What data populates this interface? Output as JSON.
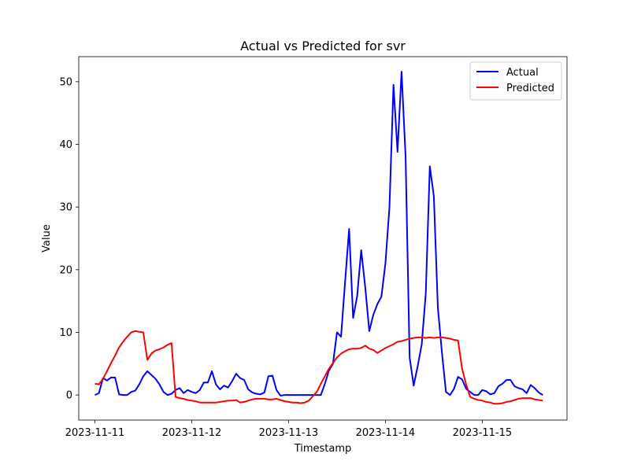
{
  "chart_data": {
    "type": "line",
    "title": "Actual vs Predicted for svr",
    "xlabel": "Timestamp",
    "ylabel": "Value",
    "x_tick_labels": [
      "2023-11-11",
      "2023-11-12",
      "2023-11-13",
      "2023-11-14",
      "2023-11-15"
    ],
    "y_ticks": [
      0,
      10,
      20,
      30,
      40,
      50
    ],
    "xlim": [
      "2023-11-10 20:00",
      "2023-11-15 21:00"
    ],
    "ylim": [
      -4,
      54
    ],
    "grid": false,
    "legend_position": "top-right",
    "x": [
      "2023-11-11 00:00",
      "2023-11-11 01:00",
      "2023-11-11 02:00",
      "2023-11-11 03:00",
      "2023-11-11 04:00",
      "2023-11-11 05:00",
      "2023-11-11 06:00",
      "2023-11-11 07:00",
      "2023-11-11 08:00",
      "2023-11-11 09:00",
      "2023-11-11 10:00",
      "2023-11-11 11:00",
      "2023-11-11 12:00",
      "2023-11-11 13:00",
      "2023-11-11 14:00",
      "2023-11-11 15:00",
      "2023-11-11 16:00",
      "2023-11-11 17:00",
      "2023-11-11 18:00",
      "2023-11-11 19:00",
      "2023-11-11 20:00",
      "2023-11-11 21:00",
      "2023-11-11 22:00",
      "2023-11-11 23:00",
      "2023-11-12 00:00",
      "2023-11-12 01:00",
      "2023-11-12 02:00",
      "2023-11-12 03:00",
      "2023-11-12 04:00",
      "2023-11-12 05:00",
      "2023-11-12 06:00",
      "2023-11-12 07:00",
      "2023-11-12 08:00",
      "2023-11-12 09:00",
      "2023-11-12 10:00",
      "2023-11-12 11:00",
      "2023-11-12 12:00",
      "2023-11-12 13:00",
      "2023-11-12 14:00",
      "2023-11-12 15:00",
      "2023-11-12 16:00",
      "2023-11-12 17:00",
      "2023-11-12 18:00",
      "2023-11-12 19:00",
      "2023-11-12 20:00",
      "2023-11-12 21:00",
      "2023-11-12 22:00",
      "2023-11-12 23:00",
      "2023-11-13 00:00",
      "2023-11-13 01:00",
      "2023-11-13 02:00",
      "2023-11-13 03:00",
      "2023-11-13 04:00",
      "2023-11-13 05:00",
      "2023-11-13 06:00",
      "2023-11-13 07:00",
      "2023-11-13 08:00",
      "2023-11-13 09:00",
      "2023-11-13 10:00",
      "2023-11-13 11:00",
      "2023-11-13 12:00",
      "2023-11-13 13:00",
      "2023-11-13 14:00",
      "2023-11-13 15:00",
      "2023-11-13 16:00",
      "2023-11-13 17:00",
      "2023-11-13 18:00",
      "2023-11-13 19:00",
      "2023-11-13 20:00",
      "2023-11-13 21:00",
      "2023-11-13 22:00",
      "2023-11-13 23:00",
      "2023-11-14 00:00",
      "2023-11-14 01:00",
      "2023-11-14 02:00",
      "2023-11-14 03:00",
      "2023-11-14 04:00",
      "2023-11-14 05:00",
      "2023-11-14 06:00",
      "2023-11-14 07:00",
      "2023-11-14 08:00",
      "2023-11-14 09:00",
      "2023-11-14 10:00",
      "2023-11-14 11:00",
      "2023-11-14 12:00",
      "2023-11-14 13:00",
      "2023-11-14 14:00",
      "2023-11-14 15:00",
      "2023-11-14 16:00",
      "2023-11-14 17:00",
      "2023-11-14 18:00",
      "2023-11-14 19:00",
      "2023-11-14 20:00",
      "2023-11-14 21:00",
      "2023-11-14 22:00",
      "2023-11-14 23:00",
      "2023-11-15 00:00",
      "2023-11-15 01:00",
      "2023-11-15 02:00",
      "2023-11-15 03:00",
      "2023-11-15 04:00",
      "2023-11-15 05:00",
      "2023-11-15 06:00",
      "2023-11-15 07:00",
      "2023-11-15 08:00",
      "2023-11-15 09:00",
      "2023-11-15 10:00",
      "2023-11-15 11:00",
      "2023-11-15 12:00",
      "2023-11-15 13:00",
      "2023-11-15 14:00",
      "2023-11-15 15:00"
    ],
    "series": [
      {
        "name": "Actual",
        "color": "#0000ff",
        "values": [
          0.0,
          0.3,
          2.7,
          2.3,
          2.8,
          2.8,
          0.1,
          0.0,
          0.0,
          0.5,
          0.7,
          1.7,
          3.0,
          3.8,
          3.2,
          2.6,
          1.7,
          0.5,
          0.0,
          0.2,
          0.8,
          1.1,
          0.3,
          0.8,
          0.5,
          0.3,
          0.8,
          2.0,
          2.0,
          3.8,
          1.7,
          0.9,
          1.5,
          1.2,
          2.2,
          3.4,
          2.7,
          2.4,
          0.9,
          0.4,
          0.2,
          0.1,
          0.4,
          3.0,
          3.1,
          0.8,
          -0.1,
          0.0,
          0.0,
          0.0,
          0.0,
          0.0,
          0.0,
          0.0,
          0.0,
          0.0,
          0.0,
          1.8,
          3.9,
          5.0,
          10.0,
          9.3,
          18.0,
          26.5,
          12.3,
          15.8,
          23.1,
          17.2,
          10.2,
          12.8,
          14.5,
          15.7,
          21.0,
          30.0,
          49.5,
          38.8,
          51.6,
          38.0,
          6.0,
          1.5,
          4.6,
          8.1,
          16.2,
          36.5,
          31.7,
          13.9,
          6.8,
          0.5,
          0.0,
          1.0,
          2.9,
          2.5,
          1.0,
          0.5,
          0.0,
          0.0,
          0.8,
          0.6,
          0.1,
          0.3,
          1.4,
          1.8,
          2.4,
          2.4,
          1.4,
          1.1,
          0.9,
          0.3,
          1.6,
          1.1,
          0.4,
          0.0
        ]
      },
      {
        "name": "Predicted",
        "color": "#ff0000",
        "values": [
          1.8,
          1.7,
          2.6,
          3.8,
          5.1,
          6.3,
          7.6,
          8.5,
          9.3,
          10.0,
          10.2,
          10.1,
          10.0,
          5.6,
          6.6,
          7.1,
          7.3,
          7.6,
          8.0,
          8.3,
          -0.3,
          -0.5,
          -0.6,
          -0.8,
          -0.9,
          -1.0,
          -1.2,
          -1.2,
          -1.2,
          -1.2,
          -1.2,
          -1.1,
          -1.0,
          -0.9,
          -0.9,
          -0.8,
          -1.2,
          -1.1,
          -0.9,
          -0.7,
          -0.6,
          -0.6,
          -0.6,
          -0.7,
          -0.7,
          -0.6,
          -0.8,
          -1.0,
          -1.1,
          -1.2,
          -1.2,
          -1.3,
          -1.2,
          -0.9,
          -0.2,
          0.5,
          1.8,
          3.0,
          4.2,
          5.1,
          6.0,
          6.6,
          7.0,
          7.3,
          7.4,
          7.4,
          7.5,
          7.9,
          7.4,
          7.2,
          6.7,
          7.1,
          7.5,
          7.8,
          8.1,
          8.5,
          8.6,
          8.8,
          9.0,
          9.1,
          9.2,
          9.2,
          9.1,
          9.2,
          9.1,
          9.2,
          9.2,
          9.1,
          9.0,
          8.8,
          8.7,
          4.2,
          1.7,
          -0.3,
          -0.6,
          -0.8,
          -0.9,
          -1.1,
          -1.2,
          -1.4,
          -1.4,
          -1.3,
          -1.1,
          -1.0,
          -0.8,
          -0.6,
          -0.5,
          -0.5,
          -0.5,
          -0.7,
          -0.8,
          -0.9
        ]
      }
    ]
  }
}
